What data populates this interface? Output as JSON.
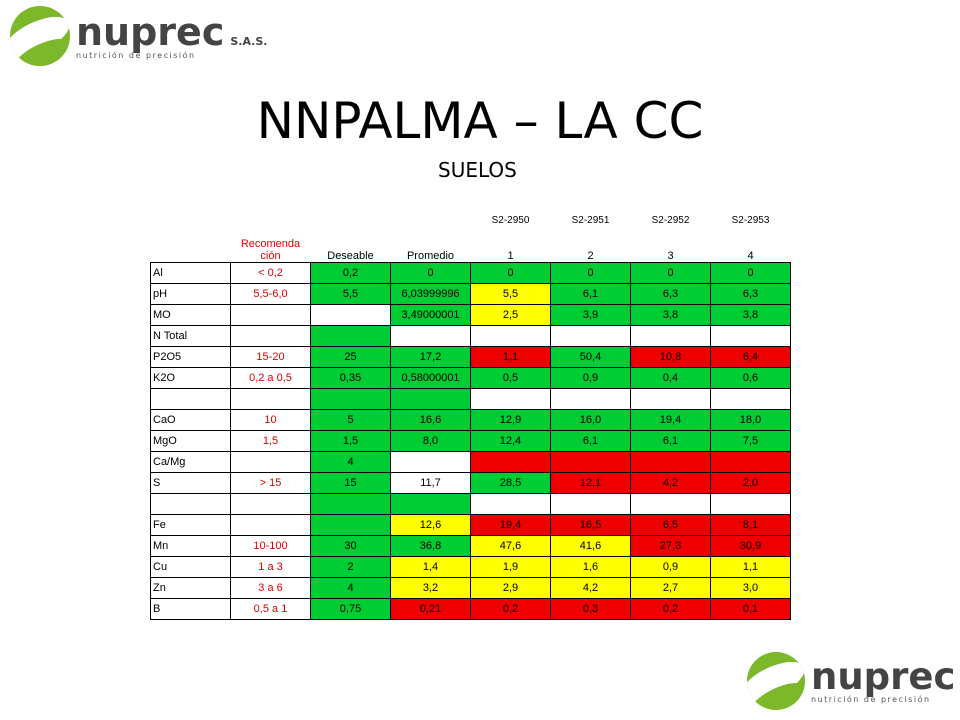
{
  "logo": {
    "brand": "nuprec",
    "suffix": "S.A.S.",
    "tagline": "nutrición de precisión"
  },
  "title": "NNPALMA – LA CC",
  "subtitle": "SUELOS",
  "table": {
    "sample_codes": [
      "S2-2950",
      "S2-2951",
      "S2-2952",
      "S2-2953"
    ],
    "headers": {
      "rec": "Recomenda ción",
      "des": "Deseable",
      "pro": "Promedio",
      "nums": [
        "1",
        "2",
        "3",
        "4"
      ]
    },
    "colors": {
      "green": "#00cc33",
      "red": "#ee0000",
      "yellow": "#ffff00",
      "white": "#ffffff"
    },
    "rows": [
      {
        "name": "Al",
        "rec": "< 0,2",
        "des": "0,2",
        "pro": "0",
        "vals": [
          "0",
          "0",
          "0",
          "0"
        ],
        "cells": [
          "g",
          "g",
          "g",
          "g",
          "g",
          "g"
        ]
      },
      {
        "name": "pH",
        "rec": "5,5-6,0",
        "des": "5,5",
        "pro": "6,03999996",
        "vals": [
          "5,5",
          "6,1",
          "6,3",
          "6,3"
        ],
        "cells": [
          "g",
          "g",
          "y",
          "g",
          "g",
          "g"
        ]
      },
      {
        "name": "MO",
        "rec": "",
        "des": "",
        "pro": "3,49000001",
        "vals": [
          "2,5",
          "3,9",
          "3,8",
          "3,8"
        ],
        "cells": [
          "w",
          "g",
          "y",
          "g",
          "g",
          "g"
        ]
      },
      {
        "name": "N Total",
        "rec": "",
        "des": "",
        "pro": "",
        "vals": [
          "",
          "",
          "",
          ""
        ],
        "cells": [
          "g",
          "w",
          "w",
          "w",
          "w",
          "w"
        ]
      },
      {
        "name": "P2O5",
        "rec": "15-20",
        "des": "25",
        "pro": "17,2",
        "vals": [
          "1,1",
          "50,4",
          "10,8",
          "6,4"
        ],
        "cells": [
          "g",
          "g",
          "r",
          "g",
          "r",
          "r"
        ]
      },
      {
        "name": "K2O",
        "rec": "0,2 a 0,5",
        "des": "0,35",
        "pro": "0,58000001",
        "vals": [
          "0,5",
          "0,9",
          "0,4",
          "0,6"
        ],
        "cells": [
          "g",
          "g",
          "g",
          "g",
          "g",
          "g"
        ]
      },
      {
        "name": "",
        "rec": "",
        "des": "",
        "pro": "",
        "vals": [
          "",
          "",
          "",
          ""
        ],
        "cells": [
          "g",
          "g",
          "w",
          "w",
          "w",
          "w"
        ]
      },
      {
        "name": "CaO",
        "rec": "10",
        "des": "5",
        "pro": "16,6",
        "vals": [
          "12,9",
          "16,0",
          "19,4",
          "18,0"
        ],
        "cells": [
          "g",
          "g",
          "g",
          "g",
          "g",
          "g"
        ]
      },
      {
        "name": "MgO",
        "rec": "1,5",
        "des": "1,5",
        "pro": "8,0",
        "vals": [
          "12,4",
          "6,1",
          "6,1",
          "7,5"
        ],
        "cells": [
          "g",
          "g",
          "g",
          "g",
          "g",
          "g"
        ]
      },
      {
        "name": "Ca/Mg",
        "rec": "",
        "des": "4",
        "pro": "",
        "vals": [
          "",
          "",
          "",
          ""
        ],
        "cells": [
          "g",
          "w",
          "r",
          "r",
          "r",
          "r"
        ]
      },
      {
        "name": "S",
        "rec": "> 15",
        "des": "15",
        "pro": "11,7",
        "vals": [
          "28,5",
          "12,1",
          "4,2",
          "2,0"
        ],
        "cells": [
          "g",
          "w",
          "g",
          "r",
          "r",
          "r"
        ]
      },
      {
        "name": "",
        "rec": "",
        "des": "",
        "pro": "",
        "vals": [
          "",
          "",
          "",
          ""
        ],
        "cells": [
          "g",
          "g",
          "w",
          "w",
          "w",
          "w"
        ]
      },
      {
        "name": "Fe",
        "rec": "",
        "des": "",
        "pro": "12,6",
        "vals": [
          "19,4",
          "16,5",
          "6,5",
          "8,1"
        ],
        "cells": [
          "g",
          "y",
          "r",
          "r",
          "r",
          "r"
        ]
      },
      {
        "name": "Mn",
        "rec": "10-100",
        "des": "30",
        "pro": "36,8",
        "vals": [
          "47,6",
          "41,6",
          "27,3",
          "30,9"
        ],
        "cells": [
          "g",
          "g",
          "y",
          "y",
          "r",
          "r"
        ]
      },
      {
        "name": "Cu",
        "rec": "1 a 3",
        "des": "2",
        "pro": "1,4",
        "vals": [
          "1,9",
          "1,6",
          "0,9",
          "1,1"
        ],
        "cells": [
          "g",
          "y",
          "y",
          "y",
          "y",
          "y"
        ]
      },
      {
        "name": "Zn",
        "rec": "3 a 6",
        "des": "4",
        "pro": "3,2",
        "vals": [
          "2,9",
          "4,2",
          "2,7",
          "3,0"
        ],
        "cells": [
          "g",
          "y",
          "y",
          "y",
          "y",
          "y"
        ]
      },
      {
        "name": "B",
        "rec": "0,5 a 1",
        "des": "0,75",
        "pro": "0,21",
        "vals": [
          "0,2",
          "0,3",
          "0,2",
          "0,1"
        ],
        "cells": [
          "g",
          "r",
          "r",
          "r",
          "r",
          "r"
        ]
      }
    ]
  }
}
